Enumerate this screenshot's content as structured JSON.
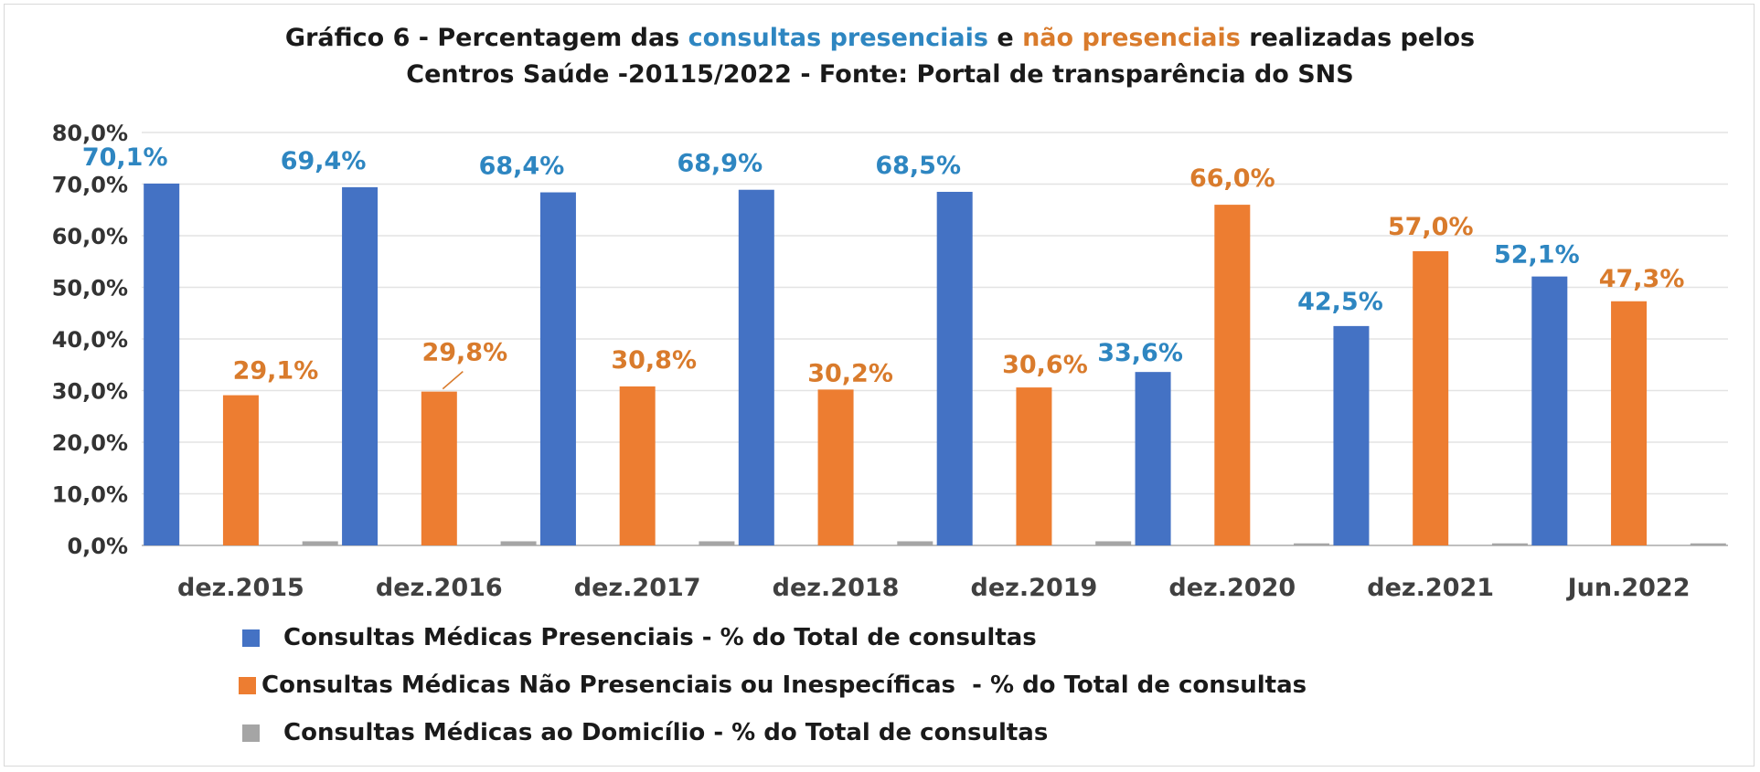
{
  "title": {
    "line1_prefix": "Gráfico 6 - Percentagem das ",
    "line1_blue": "consultas presenciais",
    "line1_mid": " e ",
    "line1_orange": "não presenciais",
    "line1_suffix": " realizadas pelos",
    "line2": "Centros Saúde -20115/2022 - Fonte: Portal de transparência do SNS"
  },
  "colors": {
    "presenciais": "#4472c4",
    "nao_presenciais": "#ed7d31",
    "domicilio": "#a5a5a5",
    "label_blue": "#2e86c1",
    "label_orange": "#d97b2c"
  },
  "chart_data": {
    "type": "bar",
    "title": "Gráfico 6 - Percentagem das consultas presenciais e não presenciais realizadas pelos Centros Saúde -20115/2022 - Fonte: Portal de transparência do SNS",
    "categories": [
      "dez.2015",
      "dez.2016",
      "dez.2017",
      "dez.2018",
      "dez.2019",
      "dez.2020",
      "dez.2021",
      "Jun.2022"
    ],
    "series": [
      {
        "name": "Consultas Médicas Presenciais - % do Total de consultas",
        "values": [
          70.1,
          69.4,
          68.4,
          68.9,
          68.5,
          33.6,
          42.5,
          52.1
        ],
        "labels": [
          "70,1%",
          "69,4%",
          "68,4%",
          "68,9%",
          "68,5%",
          "33,6%",
          "42,5%",
          "52,1%"
        ]
      },
      {
        "name": "Consultas Médicas Não Presenciais ou Inespecíficas  - % do Total de consultas",
        "values": [
          29.1,
          29.8,
          30.8,
          30.2,
          30.6,
          66.0,
          57.0,
          47.3
        ],
        "labels": [
          "29,1%",
          "29,8%",
          "30,8%",
          "30,2%",
          "30,6%",
          "66,0%",
          "57,0%",
          "47,3%"
        ]
      },
      {
        "name": "Consultas Médicas ao Domicílio - % do Total de consultas",
        "values": [
          0.8,
          0.8,
          0.8,
          0.8,
          0.8,
          0.4,
          0.4,
          0.4
        ],
        "labels": []
      }
    ],
    "yticks": [
      "0,0%",
      "10,0%",
      "20,0%",
      "30,0%",
      "40,0%",
      "50,0%",
      "60,0%",
      "70,0%",
      "80,0%"
    ],
    "ylim": [
      0,
      80
    ],
    "grid": true,
    "legend": "bottom"
  }
}
